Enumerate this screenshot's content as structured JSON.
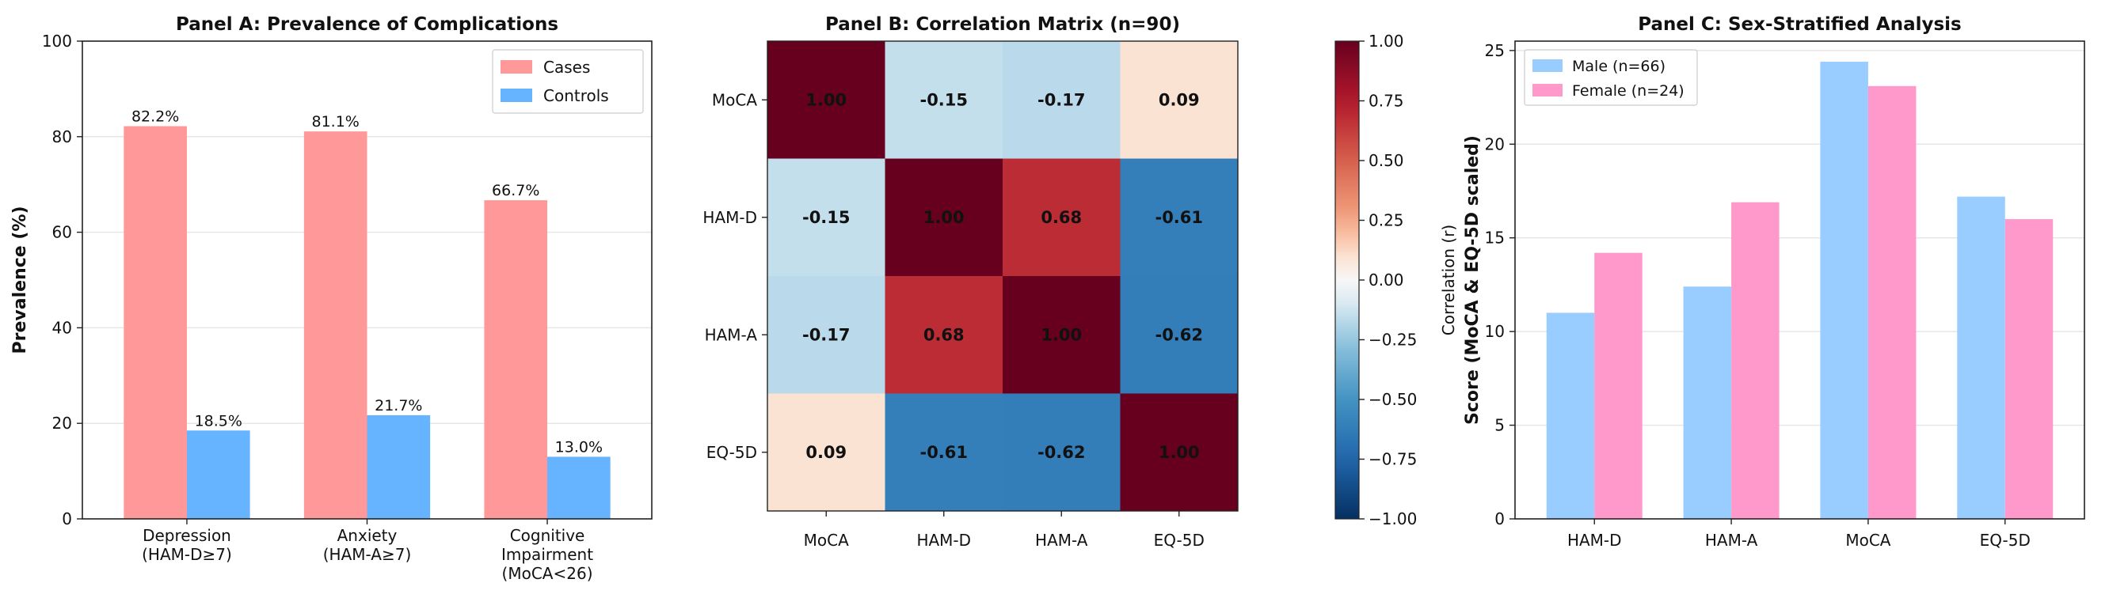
{
  "chart_data": [
    {
      "type": "bar",
      "title": "Panel A: Prevalence of Complications",
      "xlabel": "",
      "ylabel": "Prevalence (%)",
      "ylim": [
        0,
        100
      ],
      "yticks": [
        0,
        20,
        40,
        60,
        80,
        100
      ],
      "grid": true,
      "legend": "top-right",
      "categories": [
        [
          "Depression",
          "(HAM-D≥7)"
        ],
        [
          "Anxiety",
          "(HAM-A≥7)"
        ],
        [
          "Cognitive",
          "Impairment",
          "(MoCA<26)"
        ]
      ],
      "series": [
        {
          "name": "Cases",
          "color": "#ff9999",
          "values": [
            82.2,
            81.1,
            66.7
          ],
          "labels": [
            "82.2%",
            "81.1%",
            "66.7%"
          ]
        },
        {
          "name": "Controls",
          "color": "#66b3ff",
          "values": [
            18.5,
            21.7,
            13.0
          ],
          "labels": [
            "18.5%",
            "21.7%",
            "13.0%"
          ]
        }
      ]
    },
    {
      "type": "heatmap",
      "title": "Panel B: Correlation Matrix (n=90)",
      "rows": [
        "MoCA",
        "HAM-D",
        "HAM-A",
        "EQ-5D"
      ],
      "cols": [
        "MoCA",
        "HAM-D",
        "HAM-A",
        "EQ-5D"
      ],
      "values": [
        [
          1.0,
          -0.15,
          -0.17,
          0.09
        ],
        [
          -0.15,
          1.0,
          0.68,
          -0.61
        ],
        [
          -0.17,
          0.68,
          1.0,
          -0.62
        ],
        [
          0.09,
          -0.61,
          -0.62,
          1.0
        ]
      ],
      "labels": [
        [
          "1.00",
          "-0.15",
          "-0.17",
          "0.09"
        ],
        [
          "-0.15",
          "1.00",
          "0.68",
          "-0.61"
        ],
        [
          "-0.17",
          "0.68",
          "1.00",
          "-0.62"
        ],
        [
          "0.09",
          "-0.61",
          "-0.62",
          "1.00"
        ]
      ],
      "colorbar": {
        "label": "Correlation (r)",
        "range": [
          -1,
          1
        ],
        "ticks": [
          "1.00",
          "0.75",
          "0.50",
          "0.25",
          "0.00",
          "−0.25",
          "−0.50",
          "−0.75",
          "−1.00"
        ],
        "tick_values": [
          1.0,
          0.75,
          0.5,
          0.25,
          0.0,
          -0.25,
          -0.5,
          -0.75,
          -1.0
        ],
        "colormap": "RdBu_r"
      }
    },
    {
      "type": "bar",
      "title": "Panel C: Sex-Stratified Analysis",
      "xlabel": "",
      "ylabel": "Score (MoCA & EQ-5D scaled)",
      "ylim": [
        0,
        25.5
      ],
      "yticks": [
        0,
        5,
        10,
        15,
        20,
        25
      ],
      "grid": true,
      "legend": "top-left",
      "categories": [
        "HAM-D",
        "HAM-A",
        "MoCA",
        "EQ-5D"
      ],
      "series": [
        {
          "name": "Male (n=66)",
          "color": "#99ccff",
          "values": [
            11.0,
            12.4,
            24.4,
            17.2
          ]
        },
        {
          "name": "Female (n=24)",
          "color": "#ff99cc",
          "values": [
            14.2,
            16.9,
            23.1,
            16.0
          ]
        }
      ]
    }
  ]
}
